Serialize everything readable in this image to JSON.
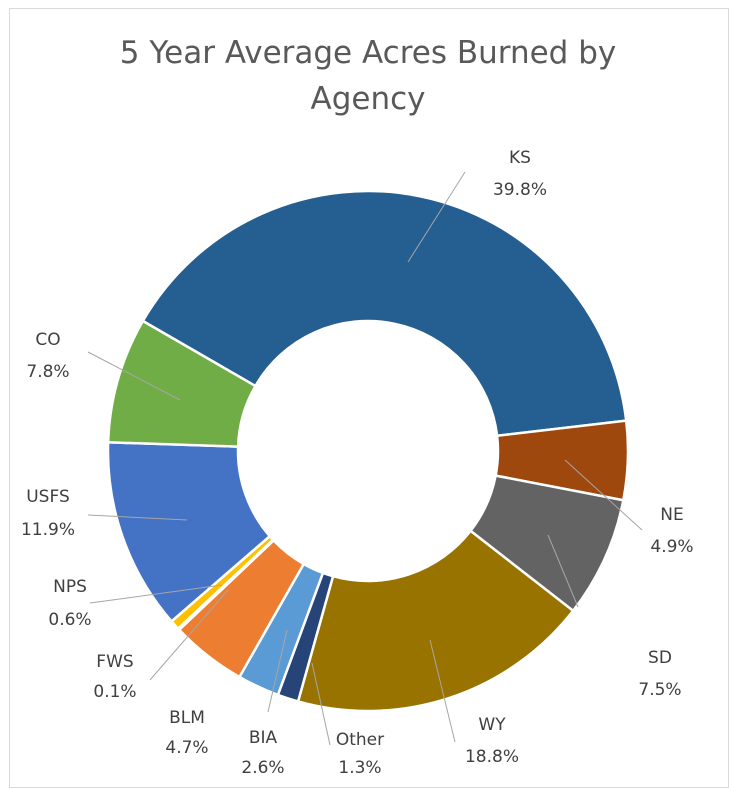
{
  "chart_data": {
    "type": "donut",
    "title": "5 Year Average Acres Burned by Agency",
    "categories": [
      "KS",
      "NE",
      "SD",
      "WY",
      "Other",
      "BIA",
      "BLM",
      "FWS",
      "NPS",
      "USFS",
      "CO"
    ],
    "values": [
      39.8,
      4.9,
      7.5,
      18.8,
      1.3,
      2.6,
      4.7,
      0.1,
      0.6,
      11.9,
      7.8
    ],
    "value_labels": [
      "39.8%",
      "4.9%",
      "7.5%",
      "18.8%",
      "1.3%",
      "2.6%",
      "4.7%",
      "0.1%",
      "0.6%",
      "11.9%",
      "7.8%"
    ],
    "colors": [
      "#255e91",
      "#9e480e",
      "#636363",
      "#997300",
      "#264478",
      "#5b9bd5",
      "#ed7d31",
      "#a5a5a5",
      "#ffc000",
      "#4472c4",
      "#70ad47"
    ]
  }
}
